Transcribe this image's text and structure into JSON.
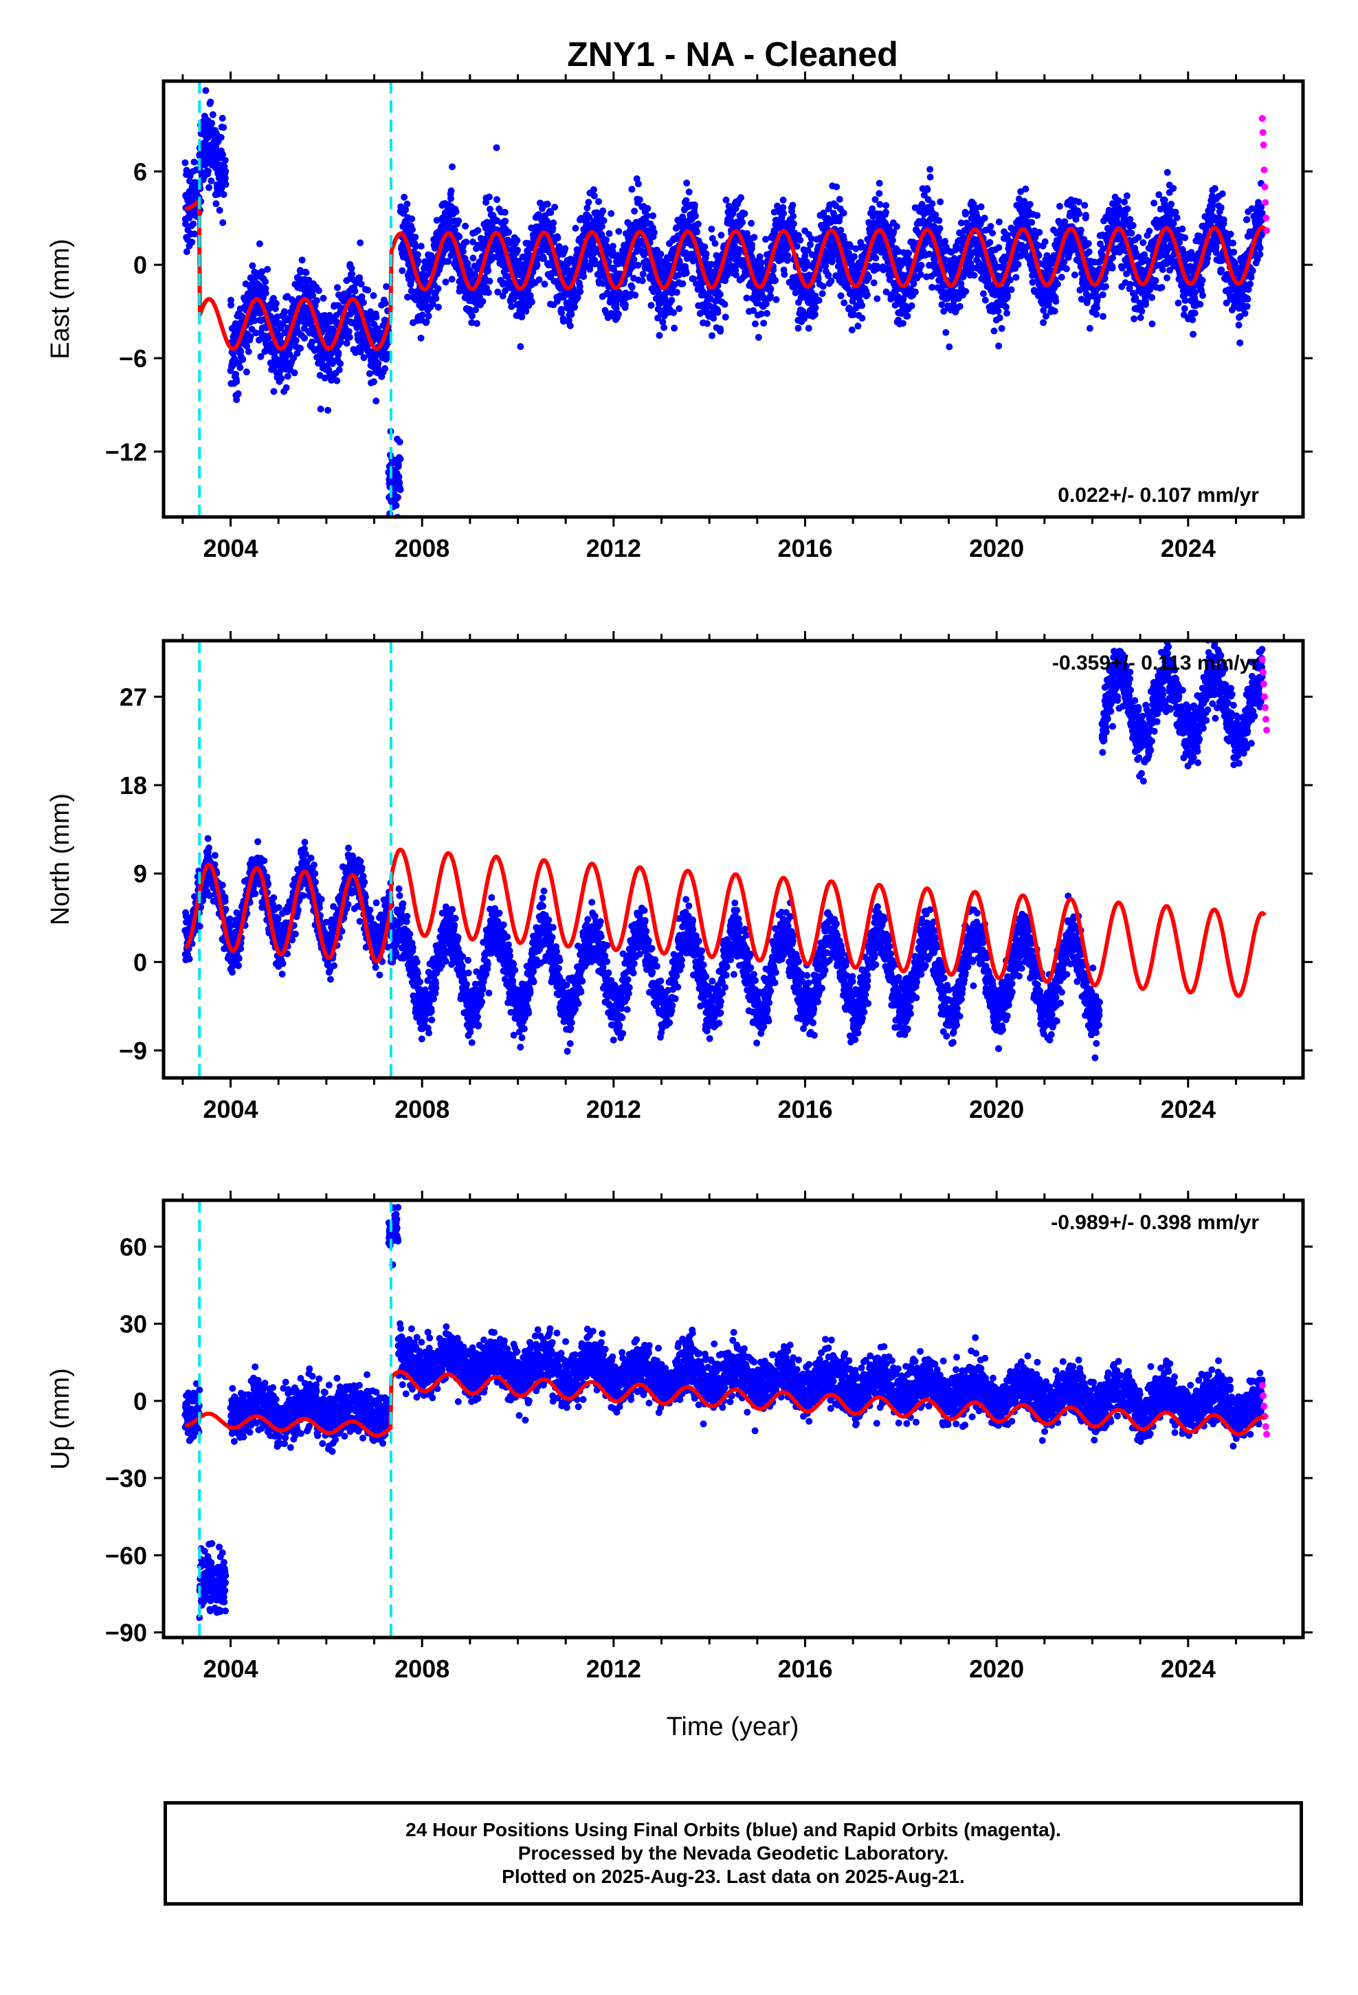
{
  "title": "ZNY1  - NA - Cleaned",
  "xlabel": "Time (year)",
  "footer": {
    "line1": "24 Hour Positions Using Final Orbits (blue) and Rapid Orbits (magenta).",
    "line2": "Processed by the Nevada Geodetic Laboratory.",
    "line3": "Plotted on 2025-Aug-23. Last data on 2025-Aug-21."
  },
  "colors": {
    "final_orbits": "#0000ff",
    "rapid_orbits": "#ff00ff",
    "model": "#ff0000",
    "offsets": "#00e5ee"
  },
  "chart_data": [
    {
      "type": "scatter",
      "panel": "east",
      "ylabel": "East (mm)",
      "rate_text": "0.022+/- 0.107 mm/yr",
      "rate_position": "bottom-right",
      "xlim": [
        2002.6,
        2026.4
      ],
      "ylim": [
        -16.2,
        11.8
      ],
      "xticks": [
        2004,
        2008,
        2012,
        2016,
        2020,
        2024
      ],
      "yticks": [
        6,
        0,
        -6,
        -12
      ],
      "ytick_labels": [
        "6",
        "0",
        "−6",
        "−12"
      ],
      "offset_epochs": [
        2003.35,
        2007.35
      ],
      "data_range": [
        2003.05,
        2025.6
      ],
      "rapid_range": [
        2025.55,
        2025.64
      ],
      "series": [
        {
          "segment": [
            2003.05,
            2003.35
          ],
          "level": 4.5,
          "amplitude": 1.0,
          "trend": 0,
          "noise": 1.2
        },
        {
          "segment": [
            2003.35,
            2003.9
          ],
          "level": 6.5,
          "amplitude": 1.2,
          "trend": 0,
          "noise": 1.3
        },
        {
          "segment": [
            2004.0,
            2007.3
          ],
          "level": -4.0,
          "amplitude": 1.5,
          "trend": 0,
          "noise": 1.3
        },
        {
          "segment": [
            2007.3,
            2007.55
          ],
          "level": -13.5,
          "amplitude": 0,
          "trend": 0,
          "noise": 1.2
        },
        {
          "segment": [
            2007.55,
            2025.55
          ],
          "level": 0.3,
          "amplitude": 1.8,
          "trend": 0.022,
          "noise": 1.3
        }
      ],
      "rapid_values": [
        9.4,
        8.5,
        7.7,
        6.1,
        5.0,
        4.0,
        3.0,
        2.2
      ],
      "model": [
        {
          "segment": [
            2003.05,
            2003.34
          ],
          "level": 4.0,
          "amplitude": 0.4,
          "trend": 0
        },
        {
          "segment": [
            2003.36,
            2007.34
          ],
          "level": -3.8,
          "amplitude": 1.6,
          "trend": 0
        },
        {
          "segment": [
            2007.36,
            2025.6
          ],
          "level": 0.2,
          "amplitude": 1.8,
          "trend": 0.022
        }
      ]
    },
    {
      "type": "scatter",
      "panel": "north",
      "ylabel": "North (mm)",
      "rate_text": "-0.359+/- 0.113 mm/yr",
      "rate_position": "top-right",
      "xlim": [
        2002.6,
        2026.4
      ],
      "ylim": [
        -11.8,
        32.7
      ],
      "xticks": [
        2004,
        2008,
        2012,
        2016,
        2020,
        2024
      ],
      "yticks": [
        27,
        18,
        9,
        0,
        -9
      ],
      "ytick_labels": [
        "27",
        "18",
        "9",
        "0",
        "−9"
      ],
      "offset_epochs": [
        2003.35,
        2007.35
      ],
      "data_range": [
        2003.05,
        2025.6
      ],
      "rapid_range": [
        2025.55,
        2025.64
      ],
      "series": [
        {
          "segment": [
            2003.05,
            2007.35
          ],
          "level": 5.5,
          "amplitude": 3.8,
          "trend": 0,
          "noise": 1.3
        },
        {
          "segment": [
            2007.35,
            2022.15
          ],
          "level": -1.0,
          "amplitude": 4.0,
          "trend": -0.05,
          "noise": 1.4
        },
        {
          "segment": [
            2022.2,
            2025.55
          ],
          "level": 25.0,
          "amplitude": 3.5,
          "trend": 0.1,
          "noise": 1.5
        }
      ],
      "rapid_values": [
        30.8,
        29.5,
        28.3,
        27.0,
        25.9,
        24.7,
        23.6
      ],
      "model": [
        {
          "segment": [
            2003.05,
            2007.34
          ],
          "level": 5.8,
          "amplitude": 4.3,
          "trend": -0.359
        },
        {
          "segment": [
            2007.36,
            2025.6
          ],
          "level": 7.2,
          "amplitude": 4.3,
          "trend": -0.359
        }
      ]
    },
    {
      "type": "scatter",
      "panel": "up",
      "ylabel": "Up (mm)",
      "rate_text": "-0.989+/- 0.398 mm/yr",
      "rate_position": "top-right",
      "xlim": [
        2002.6,
        2026.4
      ],
      "ylim": [
        -92,
        78
      ],
      "xticks": [
        2004,
        2008,
        2012,
        2016,
        2020,
        2024
      ],
      "yticks": [
        60,
        30,
        0,
        -30,
        -60,
        -90
      ],
      "ytick_labels": [
        "60",
        "30",
        "0",
        "−30",
        "−60",
        "−90"
      ],
      "offset_epochs": [
        2003.35,
        2007.35
      ],
      "data_range": [
        2003.05,
        2025.6
      ],
      "rapid_range": [
        2025.55,
        2025.64
      ],
      "series": [
        {
          "segment": [
            2003.05,
            2003.35
          ],
          "level": -4,
          "amplitude": 2,
          "trend": 0,
          "noise": 5
        },
        {
          "segment": [
            2003.35,
            2003.9
          ],
          "level": -72,
          "amplitude": 3,
          "trend": 0,
          "noise": 6
        },
        {
          "segment": [
            2004.0,
            2007.3
          ],
          "level": -4,
          "amplitude": 3,
          "trend": 0,
          "noise": 5
        },
        {
          "segment": [
            2007.3,
            2007.5
          ],
          "level": 65,
          "amplitude": 0,
          "trend": 0,
          "noise": 4
        },
        {
          "segment": [
            2007.5,
            2025.55
          ],
          "level": 9,
          "amplitude": 4,
          "trend": -0.989,
          "noise": 5
        }
      ],
      "rapid_values": [
        6,
        2,
        -2,
        -6,
        -10,
        -13
      ],
      "model": [
        {
          "segment": [
            2003.05,
            2007.34
          ],
          "level": -7,
          "amplitude": 2.5,
          "trend": -0.989
        },
        {
          "segment": [
            2007.36,
            2025.6
          ],
          "level": 8,
          "amplitude": 3.5,
          "trend": -0.989
        }
      ]
    }
  ]
}
